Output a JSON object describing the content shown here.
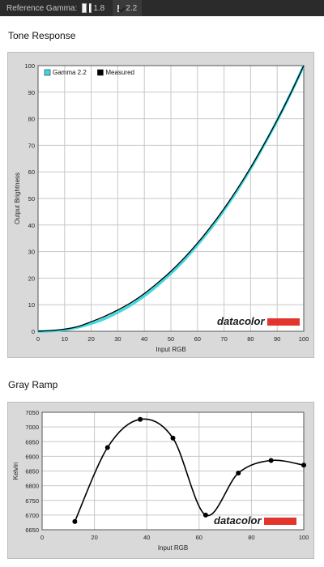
{
  "topbar": {
    "label": "Reference Gamma:",
    "options": [
      {
        "label": "1.8",
        "checked": false
      },
      {
        "label": "2.2",
        "checked": true
      }
    ]
  },
  "tone": {
    "section_title": "Tone Response",
    "chart_data": {
      "type": "line",
      "xlabel": "Input RGB",
      "ylabel": "Output Brightness",
      "xlim": [
        0,
        100
      ],
      "ylim": [
        0,
        100
      ],
      "xticks": [
        "0",
        "10",
        "20",
        "30",
        "40",
        "50",
        "60",
        "70",
        "80",
        "90",
        "100"
      ],
      "yticks": [
        "0",
        "10",
        "20",
        "30",
        "40",
        "50",
        "60",
        "70",
        "80",
        "90",
        "100"
      ],
      "grid": true,
      "legend_position": "top-left",
      "series": [
        {
          "name": "Gamma 2.2",
          "color": "#3fd8e0",
          "x": [
            0,
            5,
            10,
            15,
            20,
            25,
            30,
            35,
            40,
            45,
            50,
            55,
            60,
            65,
            70,
            75,
            80,
            85,
            90,
            95,
            100
          ],
          "y": [
            0,
            0.1,
            0.6,
            1.5,
            2.9,
            4.7,
            7.1,
            9.9,
            13.3,
            17.3,
            21.8,
            26.8,
            32.5,
            38.7,
            45.6,
            53.1,
            61.2,
            70,
            79.3,
            89.3,
            100
          ]
        },
        {
          "name": "Measured",
          "color": "#000000",
          "x": [
            0,
            5,
            10,
            15,
            20,
            25,
            30,
            35,
            40,
            45,
            50,
            55,
            60,
            65,
            70,
            75,
            80,
            85,
            90,
            95,
            100
          ],
          "y": [
            0,
            0.3,
            0.8,
            1.8,
            3.6,
            5.6,
            8.0,
            10.8,
            14.2,
            18.2,
            22.6,
            27.6,
            33.2,
            39.4,
            46.2,
            53.6,
            61.6,
            70.3,
            79.5,
            89.4,
            100
          ]
        }
      ]
    },
    "watermark": "datacolor"
  },
  "gray": {
    "section_title": "Gray Ramp",
    "chart_data": {
      "type": "line",
      "xlabel": "Input RGB",
      "ylabel": "Kelvin",
      "xlim": [
        0,
        100
      ],
      "ylim": [
        6650,
        7050
      ],
      "xticks": [
        "0",
        "20",
        "40",
        "60",
        "80",
        "100"
      ],
      "yticks": [
        "6650",
        "6700",
        "6750",
        "6800",
        "6850",
        "6900",
        "6950",
        "7000",
        "7050"
      ],
      "grid": true,
      "series": [
        {
          "name": "",
          "color": "#000000",
          "x": [
            12.5,
            25,
            37.5,
            50,
            62.5,
            75,
            87.5,
            100
          ],
          "y": [
            6678,
            6930,
            7026,
            6962,
            6700,
            6843,
            6886,
            6870
          ]
        }
      ]
    },
    "watermark": "datacolor"
  },
  "colors": {
    "topbar_bg": "#2b2b2b",
    "panel_bg": "#d9d9d9",
    "watermark_bar": "#e2352e"
  }
}
